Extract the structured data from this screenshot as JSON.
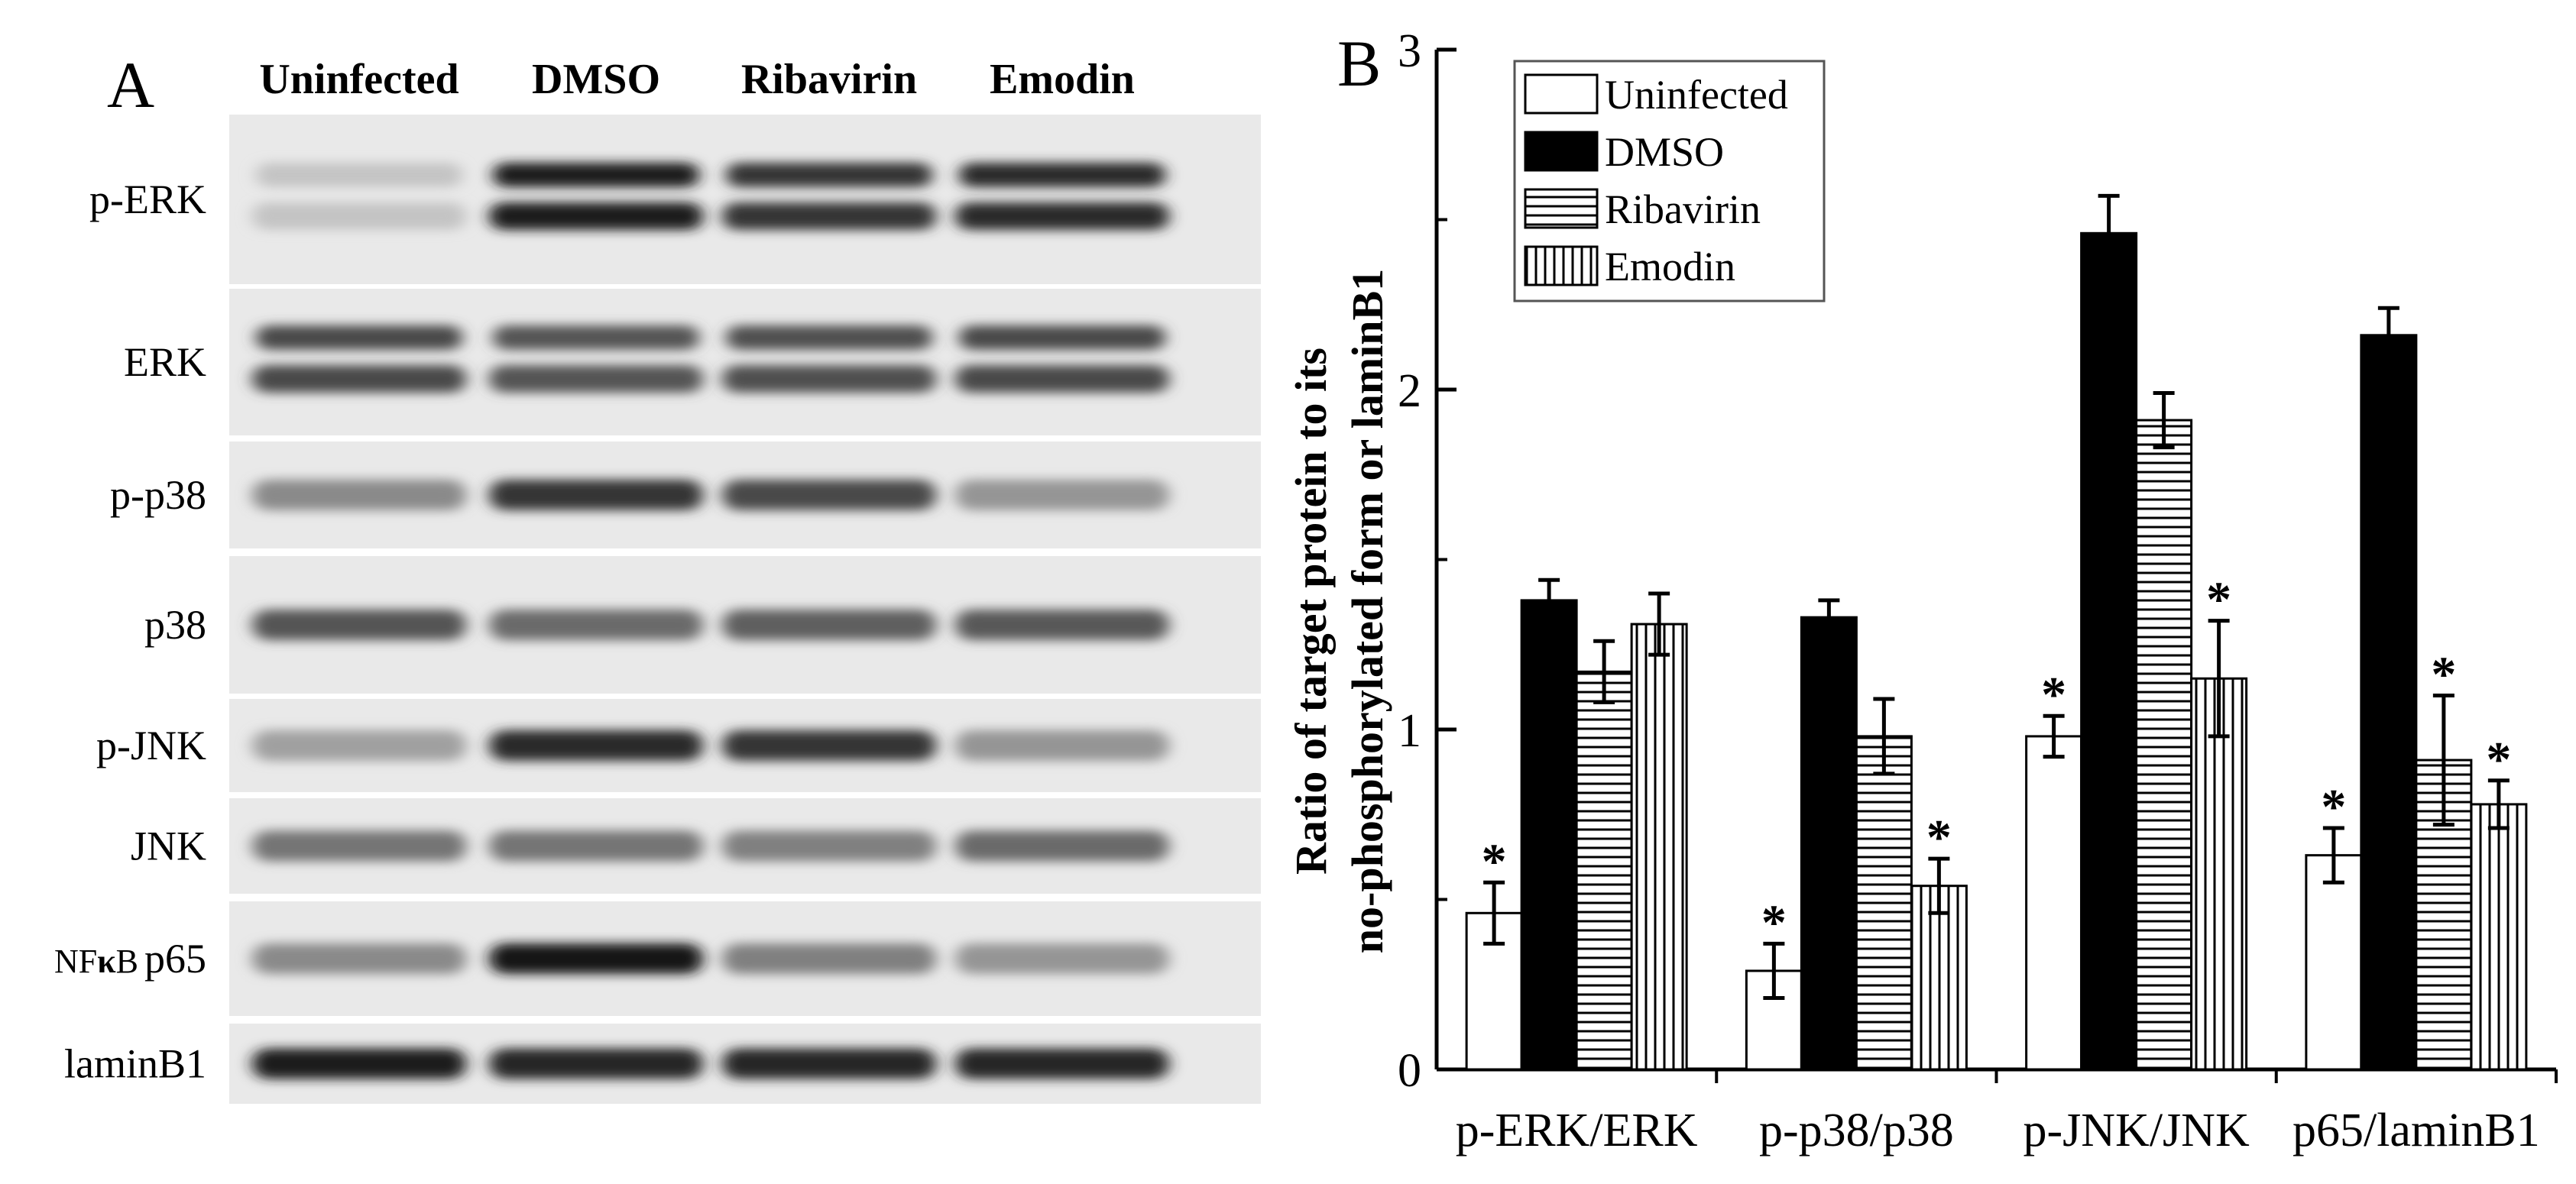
{
  "panel_a": {
    "label": "A",
    "lanes": [
      "Uninfected",
      "DMSO",
      "Ribavirin",
      "Emodin"
    ],
    "rows": [
      {
        "label": "p-ERK",
        "band_intensity": [
          0.18,
          0.95,
          0.85,
          0.9
        ],
        "double_band": true
      },
      {
        "label": "ERK",
        "band_intensity": [
          0.75,
          0.7,
          0.72,
          0.75
        ],
        "double_band": true
      },
      {
        "label": "p-p38",
        "band_intensity": [
          0.45,
          0.85,
          0.75,
          0.4
        ],
        "double_band": false
      },
      {
        "label": "p38",
        "band_intensity": [
          0.7,
          0.6,
          0.65,
          0.68
        ],
        "double_band": false
      },
      {
        "label": "p-JNK",
        "band_intensity": [
          0.35,
          0.9,
          0.85,
          0.4
        ],
        "double_band": false
      },
      {
        "label": "JNK",
        "band_intensity": [
          0.55,
          0.55,
          0.5,
          0.6
        ],
        "double_band": false
      },
      {
        "label_prefix": "NF",
        "label_kappa": "κ",
        "label_b": "B",
        "label_suffix": "p65",
        "band_intensity": [
          0.45,
          1.0,
          0.5,
          0.4
        ],
        "double_band": false
      },
      {
        "label": "laminB1",
        "band_intensity": [
          0.95,
          0.92,
          0.92,
          0.92
        ],
        "double_band": false
      }
    ]
  },
  "chart_data": {
    "type": "bar",
    "panel_label": "B",
    "categories": [
      "p-ERK/ERK",
      "p-p38/p38",
      "p-JNK/JNK",
      "p65/laminB1"
    ],
    "ylabel_line1": "Ratio of target protein to its",
    "ylabel_line2": "no-phosphorylated form or laminB1",
    "ylim": [
      0,
      3
    ],
    "yticks": [
      "0",
      "1",
      "2",
      "3"
    ],
    "series": [
      {
        "name": "Uninfected",
        "pattern": "white",
        "values": [
          0.46,
          0.29,
          0.98,
          0.63
        ],
        "errors": [
          0.09,
          0.08,
          0.06,
          0.08
        ],
        "significant": [
          true,
          true,
          true,
          true
        ]
      },
      {
        "name": "DMSO",
        "pattern": "black",
        "values": [
          1.38,
          1.33,
          2.46,
          2.16
        ],
        "errors": [
          0.06,
          0.05,
          0.11,
          0.08
        ],
        "significant": [
          false,
          false,
          false,
          false
        ]
      },
      {
        "name": "Ribavirin",
        "pattern": "horizontal",
        "values": [
          1.17,
          0.98,
          1.91,
          0.91
        ],
        "errors": [
          0.09,
          0.11,
          0.08,
          0.19
        ],
        "significant": [
          false,
          false,
          false,
          true
        ]
      },
      {
        "name": "Emodin",
        "pattern": "vertical",
        "values": [
          1.31,
          0.54,
          1.15,
          0.78
        ],
        "errors": [
          0.09,
          0.08,
          0.17,
          0.07
        ],
        "significant": [
          false,
          true,
          true,
          true
        ]
      }
    ],
    "significance_marker": "*",
    "legend_position": "top-left"
  }
}
